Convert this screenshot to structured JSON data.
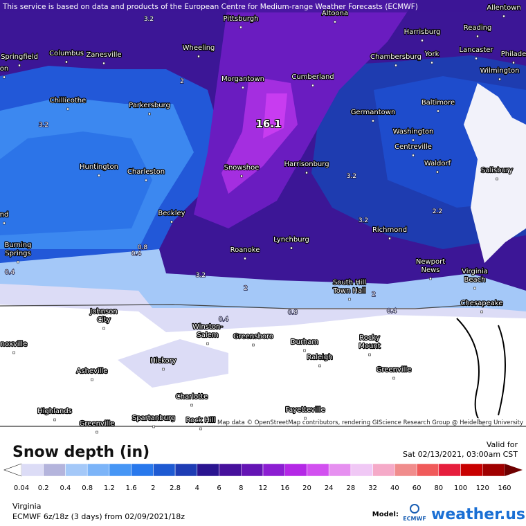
{
  "header": {
    "notice": "This service is based on data and products of the European Centre for Medium-range Weather Forecasts (ECMWF)"
  },
  "map": {
    "attribution": "Map data © OpenStreetMap contributors, rendering GIScience Research Group @ Heidelberg University",
    "max_label": "16.1",
    "cities": [
      {
        "lines": [
          "Pittsburgh"
        ]
      },
      {
        "lines": [
          "Altoona"
        ]
      },
      {
        "lines": [
          "Allentown"
        ]
      },
      {
        "lines": [
          "Harrisburg"
        ]
      },
      {
        "lines": [
          "Reading"
        ]
      },
      {
        "lines": [
          "Springfield"
        ]
      },
      {
        "lines": [
          "on"
        ]
      },
      {
        "lines": [
          "Columbus"
        ]
      },
      {
        "lines": [
          "Zanesville"
        ]
      },
      {
        "lines": [
          "Wheeling"
        ]
      },
      {
        "lines": [
          "Chambersburg"
        ]
      },
      {
        "lines": [
          "York"
        ]
      },
      {
        "lines": [
          "Lancaster"
        ]
      },
      {
        "lines": [
          "Philade"
        ]
      },
      {
        "lines": [
          "Wilmington"
        ]
      },
      {
        "lines": [
          "Morgantown"
        ]
      },
      {
        "lines": [
          "Cumberland"
        ]
      },
      {
        "lines": [
          "Chillicothe"
        ]
      },
      {
        "lines": [
          "Parkersburg"
        ]
      },
      {
        "lines": [
          "Baltimore"
        ]
      },
      {
        "lines": [
          "Germantown"
        ]
      },
      {
        "lines": [
          "Washington"
        ]
      },
      {
        "lines": [
          "Centreville"
        ]
      },
      {
        "lines": [
          "Waldorf"
        ]
      },
      {
        "lines": [
          "Huntington"
        ]
      },
      {
        "lines": [
          "Charleston"
        ]
      },
      {
        "lines": [
          "Snowshoe"
        ]
      },
      {
        "lines": [
          "Harrisonburg"
        ]
      },
      {
        "lines": [
          "Salisbury"
        ]
      },
      {
        "lines": [
          "nd"
        ]
      },
      {
        "lines": [
          "Beckley"
        ]
      },
      {
        "lines": [
          "Richmond"
        ]
      },
      {
        "lines": [
          "Lynchburg"
        ]
      },
      {
        "lines": [
          "Roanoke"
        ]
      },
      {
        "lines": [
          "Burning",
          "Springs"
        ]
      },
      {
        "lines": [
          "Newport",
          "News"
        ]
      },
      {
        "lines": [
          "Virginia",
          "Beach"
        ]
      },
      {
        "lines": [
          "South Hill",
          "Town Hall"
        ]
      },
      {
        "lines": [
          "Chesapeake"
        ]
      },
      {
        "lines": [
          "Johnson",
          "City"
        ]
      },
      {
        "lines": [
          "Winston-",
          "Salem"
        ]
      },
      {
        "lines": [
          "Greensboro"
        ]
      },
      {
        "lines": [
          "Durham"
        ]
      },
      {
        "lines": [
          "Rocky",
          "Mount"
        ]
      },
      {
        "lines": [
          "noxville"
        ]
      },
      {
        "lines": [
          "Raleigh"
        ]
      },
      {
        "lines": [
          "Hickory"
        ]
      },
      {
        "lines": [
          "Asheville"
        ]
      },
      {
        "lines": [
          "Greenville"
        ]
      },
      {
        "lines": [
          "Charlotte"
        ]
      },
      {
        "lines": [
          "Fayetteville"
        ]
      },
      {
        "lines": [
          "Highlands"
        ]
      },
      {
        "lines": [
          "Spartanburg"
        ]
      },
      {
        "lines": [
          "Rock Hill"
        ]
      },
      {
        "lines": [
          "Greenville"
        ]
      }
    ],
    "contour_labels": [
      "3.2",
      "3.2",
      "3.2",
      "3.2",
      "3.2",
      "2",
      "2",
      "2",
      "0.8",
      "0.8",
      "0.4",
      "0.4",
      "0.4",
      "0.4",
      "2.2"
    ]
  },
  "legend": {
    "title": "Snow depth (in)",
    "valid_label": "Valid for",
    "valid_time": "Sat 02/13/2021, 03:00am CST",
    "ticks": [
      "0.04",
      "0.2",
      "0.4",
      "0.8",
      "1.2",
      "1.6",
      "2",
      "2.8",
      "4",
      "6",
      "8",
      "12",
      "16",
      "20",
      "24",
      "28",
      "32",
      "40",
      "60",
      "80",
      "100",
      "120",
      "160"
    ],
    "colors": [
      "#dcdcf6",
      "#b4b4dc",
      "#a4c8f8",
      "#7cb4f8",
      "#4696f5",
      "#2878ec",
      "#1e5ad2",
      "#1e3cb4",
      "#2a1490",
      "#46109c",
      "#6414b4",
      "#8c1ed2",
      "#b428e6",
      "#d250f0",
      "#e690f0",
      "#f0c8f5",
      "#f5aac8",
      "#f08c8c",
      "#f05a5a",
      "#e61e3c",
      "#c80000",
      "#a00000"
    ],
    "under_color": "#ffffff",
    "over_color": "#6e0000",
    "region": "Virginia",
    "run": "ECMWF 6z/18z (3 days) from 02/09/2021/18z",
    "model_label": "Model:",
    "model_name": "ECMWF",
    "brand": "weather.us"
  }
}
